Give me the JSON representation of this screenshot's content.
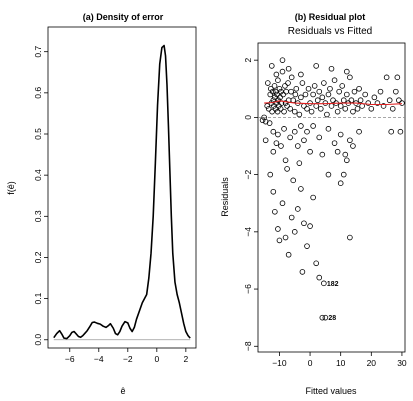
{
  "chart_data": [
    {
      "type": "line",
      "title": "(a) Density of error",
      "xlabel": "ê",
      "ylabel": "f(ê)",
      "xlim": [
        -7.5,
        2.7
      ],
      "ylim": [
        -0.02,
        0.76
      ],
      "xticks": [
        -6,
        -4,
        -2,
        0,
        2
      ],
      "yticks": [
        0.0,
        0.1,
        0.2,
        0.3,
        0.4,
        0.5,
        0.6,
        0.7
      ],
      "xtick_labels": [
        "−6",
        "−4",
        "−2",
        "0",
        "2"
      ],
      "ytick_labels": [
        "0.0",
        "0.1",
        "0.2",
        "0.3",
        "0.4",
        "0.5",
        "0.6",
        "0.7"
      ],
      "baseline": 0,
      "series": [
        {
          "x": [
            -7.1,
            -6.9,
            -6.7,
            -6.55,
            -6.4,
            -6.2,
            -6.0,
            -5.85,
            -5.7,
            -5.55,
            -5.4,
            -5.25,
            -5.1,
            -4.95,
            -4.8,
            -4.6,
            -4.45,
            -4.3,
            -4.1,
            -3.9,
            -3.7,
            -3.5,
            -3.35,
            -3.2,
            -3.0,
            -2.85,
            -2.7,
            -2.55,
            -2.4,
            -2.2,
            -2.0,
            -1.85,
            -1.7,
            -1.55,
            -1.4,
            -1.2,
            -1.0,
            -0.85,
            -0.7,
            -0.55,
            -0.4,
            -0.25,
            -0.1,
            0.05,
            0.2,
            0.35,
            0.5,
            0.6,
            0.7,
            0.8,
            0.9,
            1.0,
            1.1,
            1.25,
            1.4,
            1.55,
            1.7,
            1.85,
            2.0,
            2.15,
            2.3
          ],
          "y": [
            0.005,
            0.015,
            0.022,
            0.014,
            0.004,
            0.003,
            0.01,
            0.018,
            0.02,
            0.014,
            0.008,
            0.006,
            0.01,
            0.016,
            0.022,
            0.033,
            0.042,
            0.043,
            0.04,
            0.038,
            0.033,
            0.03,
            0.034,
            0.039,
            0.028,
            0.015,
            0.012,
            0.02,
            0.033,
            0.044,
            0.041,
            0.028,
            0.02,
            0.03,
            0.05,
            0.07,
            0.09,
            0.1,
            0.11,
            0.15,
            0.21,
            0.3,
            0.43,
            0.57,
            0.67,
            0.71,
            0.715,
            0.69,
            0.62,
            0.52,
            0.41,
            0.3,
            0.21,
            0.14,
            0.11,
            0.09,
            0.065,
            0.04,
            0.02,
            0.01,
            0.004
          ]
        }
      ]
    },
    {
      "type": "scatter",
      "title": "(b) Residual plot",
      "subtitle": "Residuals vs Fitted",
      "xlabel": "Fitted values",
      "ylabel": "Residuals",
      "xlim": [
        -17,
        31
      ],
      "ylim": [
        -8.2,
        2.6
      ],
      "xticks": [
        -10,
        0,
        10,
        20,
        30
      ],
      "yticks": [
        2,
        0,
        -2,
        -4,
        -6,
        -8
      ],
      "xtick_labels": [
        "−10",
        "0",
        "10",
        "20",
        "30"
      ],
      "ytick_labels": [
        "2",
        "0",
        "−2",
        "−4",
        "−6",
        "−8"
      ],
      "reference_line_y": 0,
      "smoother": {
        "x": [
          -15,
          -12,
          -10,
          -8,
          -5,
          0,
          5,
          10,
          15,
          20,
          25,
          30
        ],
        "y": [
          0.5,
          0.52,
          0.58,
          0.55,
          0.5,
          0.48,
          0.48,
          0.5,
          0.5,
          0.45,
          0.45,
          0.48
        ],
        "color": "#e02020"
      },
      "annotations": [
        {
          "label": "182",
          "x": 4.5,
          "y": -5.8
        },
        {
          "label": "28",
          "x": 5.0,
          "y": -7.0
        }
      ],
      "points": [
        [
          -15.5,
          -0.1
        ],
        [
          -15.0,
          0.0
        ],
        [
          -14.5,
          -0.15
        ],
        [
          -13.8,
          1.2
        ],
        [
          -13.5,
          0.3
        ],
        [
          -13.2,
          -0.2
        ],
        [
          -13.0,
          0.8
        ],
        [
          -12.8,
          1.0
        ],
        [
          -12.6,
          0.5
        ],
        [
          -12.4,
          0.2
        ],
        [
          -12.2,
          0.9
        ],
        [
          -12.0,
          0.6
        ],
        [
          -11.8,
          0.4
        ],
        [
          -11.6,
          1.1
        ],
        [
          -11.5,
          0.7
        ],
        [
          -11.3,
          0.3
        ],
        [
          -11.2,
          0.9
        ],
        [
          -11.0,
          0.5
        ],
        [
          -10.8,
          0.8
        ],
        [
          -10.6,
          0.2
        ],
        [
          -10.5,
          1.3
        ],
        [
          -10.4,
          0.6
        ],
        [
          -10.2,
          0.4
        ],
        [
          -10.0,
          1.0
        ],
        [
          -9.8,
          0.7
        ],
        [
          -9.6,
          0.3
        ],
        [
          -9.5,
          0.9
        ],
        [
          -9.3,
          0.5
        ],
        [
          -9.0,
          1.6
        ],
        [
          -8.8,
          0.8
        ],
        [
          -8.5,
          0.2
        ],
        [
          -8.2,
          1.1
        ],
        [
          -8.0,
          0.5
        ],
        [
          -7.8,
          0.9
        ],
        [
          -7.5,
          0.4
        ],
        [
          -7.2,
          1.2
        ],
        [
          -7.0,
          0.6
        ],
        [
          -6.5,
          0.3
        ],
        [
          -6.2,
          0.9
        ],
        [
          -6.0,
          1.4
        ],
        [
          -5.5,
          0.6
        ],
        [
          -5.0,
          0.2
        ],
        [
          -4.8,
          0.8
        ],
        [
          -4.5,
          1.0
        ],
        [
          -4.0,
          0.5
        ],
        [
          -3.5,
          0.1
        ],
        [
          -3.0,
          0.7
        ],
        [
          -2.5,
          1.2
        ],
        [
          -2.0,
          0.4
        ],
        [
          -1.5,
          0.8
        ],
        [
          -1.0,
          0.3
        ],
        [
          -0.5,
          1.0
        ],
        [
          0.0,
          0.5
        ],
        [
          0.5,
          0.2
        ],
        [
          1.0,
          0.8
        ],
        [
          1.5,
          1.1
        ],
        [
          2.0,
          0.4
        ],
        [
          2.5,
          0.6
        ],
        [
          3.0,
          0.9
        ],
        [
          3.5,
          0.3
        ],
        [
          4.0,
          0.7
        ],
        [
          4.5,
          1.2
        ],
        [
          5.0,
          0.5
        ],
        [
          5.5,
          0.1
        ],
        [
          6.0,
          0.8
        ],
        [
          6.5,
          1.0
        ],
        [
          7.0,
          0.4
        ],
        [
          7.5,
          0.6
        ],
        [
          8.0,
          1.3
        ],
        [
          8.5,
          0.5
        ],
        [
          9.0,
          0.2
        ],
        [
          9.5,
          0.9
        ],
        [
          10.0,
          0.4
        ],
        [
          10.5,
          1.1
        ],
        [
          11.0,
          0.6
        ],
        [
          11.5,
          0.3
        ],
        [
          12.0,
          0.8
        ],
        [
          12.5,
          0.5
        ],
        [
          13.0,
          1.4
        ],
        [
          13.5,
          0.6
        ],
        [
          14.0,
          0.2
        ],
        [
          14.5,
          0.9
        ],
        [
          15.0,
          0.5
        ],
        [
          15.5,
          0.3
        ],
        [
          16.0,
          1.0
        ],
        [
          16.5,
          0.6
        ],
        [
          17.0,
          0.4
        ],
        [
          18.0,
          0.8
        ],
        [
          19.0,
          0.5
        ],
        [
          20.0,
          0.3
        ],
        [
          21.0,
          0.7
        ],
        [
          22.0,
          0.5
        ],
        [
          23.0,
          0.9
        ],
        [
          24.0,
          0.4
        ],
        [
          25.0,
          1.4
        ],
        [
          26.0,
          0.6
        ],
        [
          26.5,
          -0.5
        ],
        [
          27.0,
          0.3
        ],
        [
          28.0,
          0.9
        ],
        [
          28.5,
          1.4
        ],
        [
          29.0,
          0.6
        ],
        [
          29.5,
          -0.5
        ],
        [
          30.0,
          0.5
        ],
        [
          -14.0,
          0.4
        ],
        [
          -12.5,
          1.8
        ],
        [
          -11.0,
          1.5
        ],
        [
          -9.0,
          2.0
        ],
        [
          -7.0,
          1.7
        ],
        [
          -3.0,
          1.5
        ],
        [
          2.0,
          1.8
        ],
        [
          7.0,
          1.7
        ],
        [
          12.0,
          1.6
        ],
        [
          -12.0,
          -0.5
        ],
        [
          -11.0,
          -0.9
        ],
        [
          -10.5,
          -0.6
        ],
        [
          -9.5,
          -1.0
        ],
        [
          -8.5,
          -0.4
        ],
        [
          -8.0,
          -1.5
        ],
        [
          -7.5,
          -1.8
        ],
        [
          -6.5,
          -0.7
        ],
        [
          -5.0,
          -0.5
        ],
        [
          -4.0,
          -1.0
        ],
        [
          -3.0,
          -0.3
        ],
        [
          -2.0,
          -0.8
        ],
        [
          -1.0,
          -0.5
        ],
        [
          0.0,
          -1.2
        ],
        [
          1.0,
          -0.3
        ],
        [
          3.0,
          -0.7
        ],
        [
          4.0,
          -1.3
        ],
        [
          6.0,
          -0.4
        ],
        [
          8.0,
          -0.9
        ],
        [
          9.0,
          -1.2
        ],
        [
          10.0,
          -0.6
        ],
        [
          11.0,
          -2.0
        ],
        [
          12.0,
          -1.5
        ],
        [
          13.0,
          -0.8
        ],
        [
          14.0,
          -1.0
        ],
        [
          16.0,
          -0.5
        ],
        [
          -13.0,
          -2.0
        ],
        [
          -12.0,
          -2.6
        ],
        [
          -11.5,
          -3.3
        ],
        [
          -10.5,
          -3.9
        ],
        [
          -10.0,
          -4.3
        ],
        [
          -9.0,
          -3.0
        ],
        [
          -8.0,
          -4.2
        ],
        [
          -7.0,
          -4.8
        ],
        [
          -6.0,
          -3.5
        ],
        [
          -5.0,
          -4.0
        ],
        [
          -4.0,
          -3.2
        ],
        [
          -3.0,
          -2.5
        ],
        [
          -2.0,
          -3.7
        ],
        [
          -1.0,
          -4.5
        ],
        [
          0.0,
          -3.8
        ],
        [
          1.0,
          -2.8
        ],
        [
          2.0,
          -5.1
        ],
        [
          3.0,
          -5.6
        ],
        [
          -2.5,
          -5.4
        ],
        [
          4.5,
          -5.8
        ],
        [
          13.0,
          -4.2
        ],
        [
          10.0,
          -2.3
        ],
        [
          5.0,
          -7.0
        ],
        [
          4.0,
          -7.0
        ],
        [
          -12.0,
          -1.2
        ],
        [
          -14.5,
          -0.8
        ],
        [
          -5.5,
          -2.2
        ],
        [
          -3.5,
          -1.6
        ],
        [
          6.0,
          -2.0
        ],
        [
          11.5,
          -1.3
        ]
      ]
    }
  ]
}
